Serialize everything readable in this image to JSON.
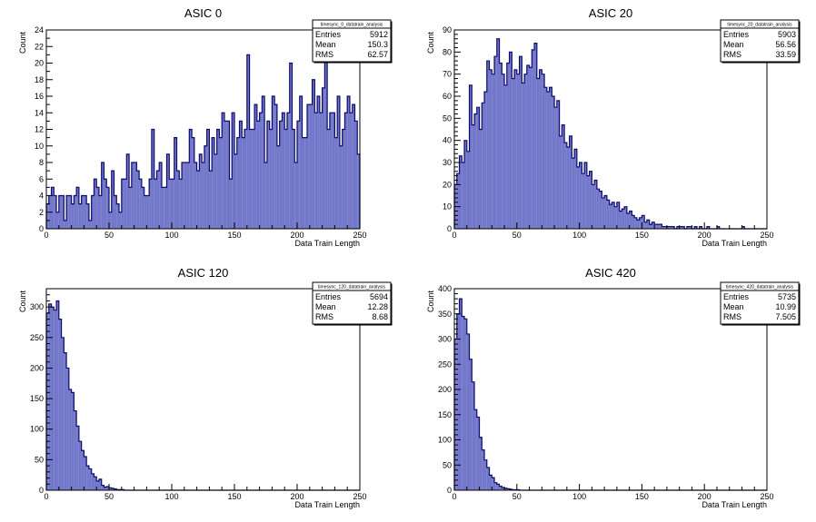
{
  "chart_data": [
    {
      "type": "bar",
      "title": "ASIC 0",
      "xlabel": "Data Train Length",
      "ylabel": "Count",
      "xlim": [
        0,
        250
      ],
      "ylim": [
        0,
        24
      ],
      "xticks": [
        0,
        50,
        100,
        150,
        200,
        250
      ],
      "yticks": [
        0,
        2,
        4,
        6,
        8,
        10,
        12,
        14,
        16,
        18,
        20,
        22,
        24
      ],
      "bin_width": 2,
      "color": "#5a5fc0",
      "stats_box": {
        "name": "timesync_0_datatrain_analysis",
        "rows": [
          {
            "label": "Entries",
            "value": "5912"
          },
          {
            "label": "Mean",
            "value": "150.3"
          },
          {
            "label": "RMS",
            "value": "62.57"
          }
        ]
      },
      "values": [
        3,
        4,
        5,
        4,
        2,
        4,
        4,
        1,
        4,
        4,
        3,
        4,
        5,
        3,
        4,
        4,
        3,
        1,
        4,
        6,
        5,
        4,
        8,
        6,
        5,
        2,
        7,
        4,
        3,
        2,
        6,
        6,
        9,
        5,
        8,
        8,
        7,
        6,
        5,
        4,
        4,
        6,
        12,
        6,
        7,
        8,
        5,
        5,
        9,
        6,
        6,
        11,
        7,
        6,
        8,
        8,
        8,
        12,
        11,
        8,
        7,
        9,
        8,
        10,
        12,
        7,
        11,
        9,
        12,
        11,
        14,
        13,
        13,
        6,
        14,
        9,
        11,
        13,
        11,
        12,
        21,
        12,
        12,
        15,
        13,
        14,
        16,
        8,
        13,
        12,
        16,
        15,
        10,
        13,
        14,
        12,
        14,
        20,
        12,
        8,
        13,
        16,
        11,
        11,
        15,
        15,
        18,
        14,
        16,
        14,
        17,
        22,
        12,
        14,
        14,
        11,
        16,
        10,
        12,
        14,
        16,
        14,
        15,
        13,
        9
      ]
    },
    {
      "type": "bar",
      "title": "ASIC 20",
      "xlabel": "Data Train Length",
      "ylabel": "Count",
      "xlim": [
        0,
        250
      ],
      "ylim": [
        0,
        90
      ],
      "xticks": [
        0,
        50,
        100,
        150,
        200,
        250
      ],
      "yticks": [
        0,
        10,
        20,
        30,
        40,
        50,
        60,
        70,
        80,
        90
      ],
      "bin_width": 2,
      "color": "#5a5fc0",
      "stats_box": {
        "name": "timesync_20_datatrain_analysis",
        "rows": [
          {
            "label": "Entries",
            "value": "5903"
          },
          {
            "label": "Mean",
            "value": "56.56"
          },
          {
            "label": "RMS",
            "value": "33.59"
          }
        ]
      },
      "values": [
        20,
        25,
        33,
        30,
        40,
        35,
        65,
        47,
        52,
        55,
        45,
        57,
        62,
        76,
        72,
        70,
        78,
        86,
        75,
        70,
        65,
        75,
        80,
        68,
        72,
        70,
        78,
        66,
        70,
        74,
        73,
        81,
        84,
        68,
        72,
        70,
        64,
        62,
        64,
        60,
        55,
        58,
        42,
        47,
        39,
        37,
        42,
        32,
        36,
        28,
        30,
        25,
        30,
        24,
        26,
        20,
        22,
        18,
        17,
        14,
        15,
        13,
        11,
        12,
        10,
        12,
        8,
        9,
        10,
        7,
        8,
        6,
        5,
        4,
        5,
        6,
        3,
        4,
        2,
        3,
        2,
        2,
        2,
        1,
        1,
        1,
        1,
        1,
        0,
        1,
        1,
        1,
        0,
        1,
        1,
        0,
        1,
        0,
        1,
        0,
        0,
        1,
        0,
        0,
        0,
        1,
        0,
        0,
        0,
        0,
        0,
        0,
        0,
        0,
        0,
        1,
        0,
        0,
        0,
        0,
        0,
        0,
        0,
        0,
        0
      ]
    },
    {
      "type": "bar",
      "title": "ASIC 120",
      "xlabel": "Data Train Length",
      "ylabel": "Count",
      "xlim": [
        0,
        250
      ],
      "ylim": [
        0,
        330
      ],
      "xticks": [
        0,
        50,
        100,
        150,
        200,
        250
      ],
      "yticks": [
        0,
        50,
        100,
        150,
        200,
        250,
        300
      ],
      "bin_width": 2,
      "color": "#5a5fc0",
      "stats_box": {
        "name": "timesync_120_datatrain_analysis",
        "rows": [
          {
            "label": "Entries",
            "value": "5694"
          },
          {
            "label": "Mean",
            "value": "12.28"
          },
          {
            "label": "RMS",
            "value": "8.68"
          }
        ]
      },
      "values": [
        290,
        305,
        300,
        295,
        310,
        280,
        250,
        225,
        200,
        165,
        160,
        130,
        105,
        80,
        65,
        55,
        40,
        35,
        27,
        22,
        15,
        18,
        8,
        5,
        6,
        4,
        3,
        2,
        1,
        1,
        1,
        0,
        0,
        0,
        0,
        0,
        0,
        0,
        0,
        0,
        0,
        0,
        0,
        0,
        0,
        0,
        0,
        0,
        0,
        0,
        0,
        0,
        0,
        0,
        0,
        0,
        0,
        0,
        0,
        0,
        0,
        0,
        0,
        0,
        0,
        0,
        0,
        0,
        0,
        0,
        0,
        0,
        0,
        0,
        0,
        0,
        0,
        0,
        0,
        0,
        0,
        0,
        0,
        0,
        0,
        0,
        0,
        0,
        0,
        0,
        0,
        0,
        0,
        0,
        0,
        0,
        0,
        0,
        0,
        0,
        0,
        0,
        0,
        0,
        0,
        0,
        0,
        0,
        0,
        0,
        0,
        0,
        0,
        0,
        0,
        0,
        0,
        0,
        0,
        0,
        0,
        0,
        0,
        0,
        0
      ]
    },
    {
      "type": "bar",
      "title": "ASIC 420",
      "xlabel": "Data Train Length",
      "ylabel": "Count",
      "xlim": [
        0,
        250
      ],
      "ylim": [
        0,
        400
      ],
      "xticks": [
        0,
        50,
        100,
        150,
        200,
        250
      ],
      "yticks": [
        0,
        50,
        100,
        150,
        200,
        250,
        300,
        350,
        400
      ],
      "bin_width": 2,
      "color": "#5a5fc0",
      "stats_box": {
        "name": "timesync_420_datatrain_analysis",
        "rows": [
          {
            "label": "Entries",
            "value": "5735"
          },
          {
            "label": "Mean",
            "value": "10.99"
          },
          {
            "label": "RMS",
            "value": "7.505"
          }
        ]
      },
      "values": [
        300,
        350,
        380,
        345,
        340,
        310,
        260,
        215,
        160,
        145,
        105,
        80,
        60,
        45,
        30,
        25,
        15,
        12,
        8,
        5,
        4,
        3,
        2,
        1,
        1,
        1,
        0,
        0,
        0,
        0,
        0,
        0,
        0,
        0,
        0,
        0,
        0,
        0,
        0,
        0,
        0,
        0,
        0,
        0,
        0,
        0,
        0,
        0,
        0,
        0,
        0,
        0,
        0,
        0,
        0,
        0,
        0,
        0,
        0,
        0,
        0,
        0,
        0,
        0,
        0,
        0,
        0,
        0,
        0,
        0,
        0,
        0,
        0,
        0,
        0,
        0,
        0,
        0,
        0,
        0,
        0,
        0,
        0,
        0,
        0,
        0,
        0,
        0,
        0,
        0,
        0,
        0,
        0,
        0,
        0,
        0,
        0,
        0,
        0,
        0,
        0,
        0,
        0,
        0,
        0,
        0,
        0,
        0,
        0,
        0,
        0,
        0,
        0,
        0,
        0,
        0,
        0,
        0,
        0,
        0,
        0,
        0,
        0,
        0,
        0
      ]
    }
  ]
}
